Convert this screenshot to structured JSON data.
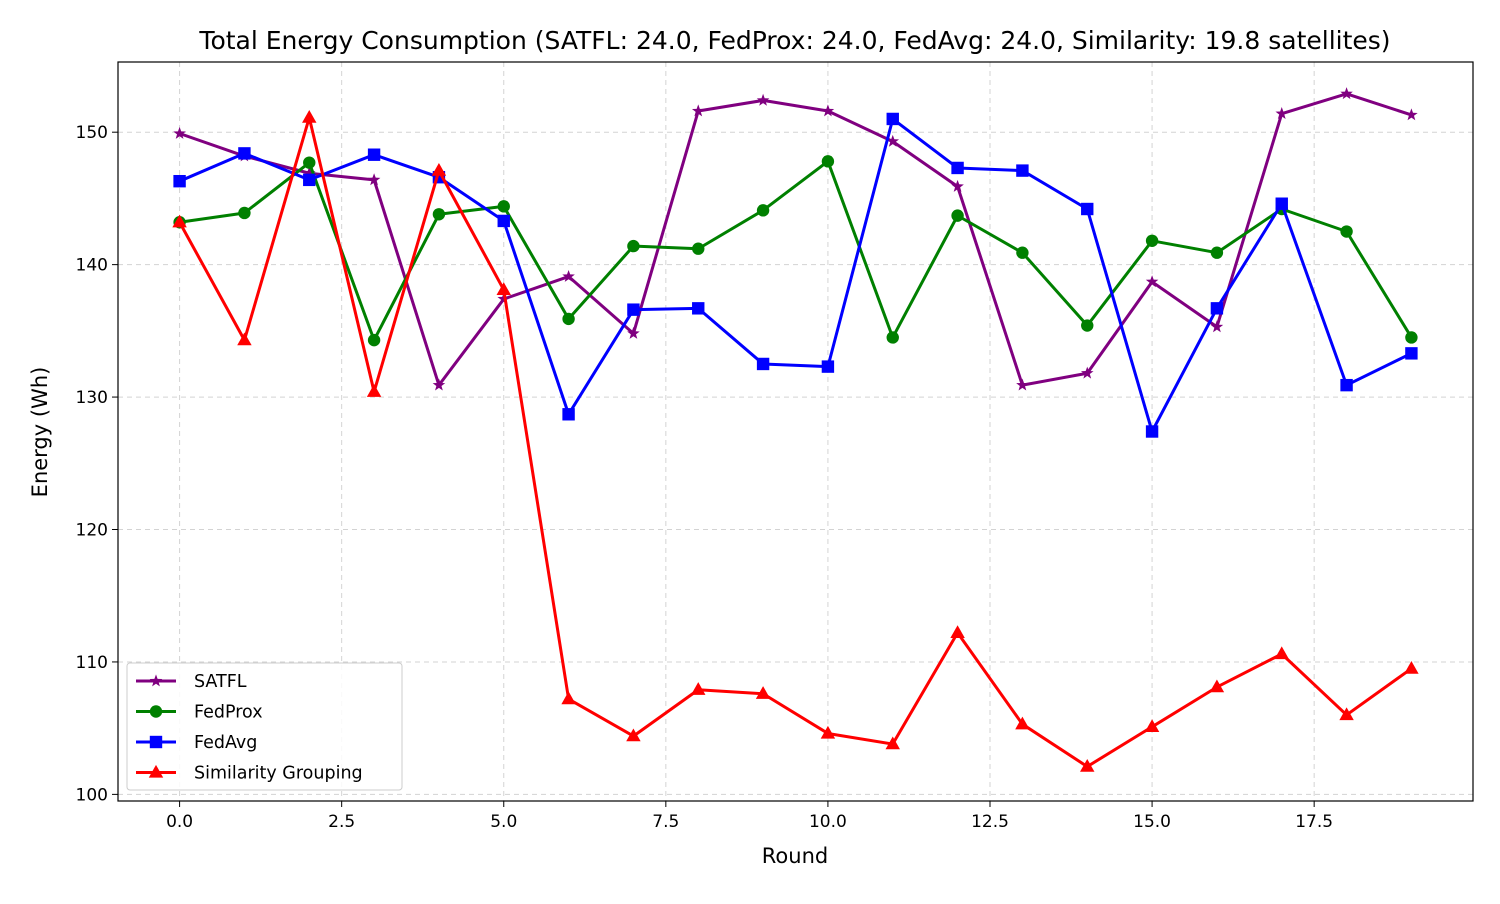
{
  "chart_data": {
    "type": "line",
    "title": "Total Energy Consumption (SATFL: 24.0, FedProx: 24.0, FedAvg: 24.0, Similarity: 19.8 satellites)",
    "xlabel": "Round",
    "ylabel": "Energy (Wh)",
    "xlim": [
      -0.95,
      19.95
    ],
    "ylim": [
      99.5,
      155.3
    ],
    "xticks": [
      "0.0",
      "2.5",
      "5.0",
      "7.5",
      "10.0",
      "12.5",
      "15.0",
      "17.5"
    ],
    "xtick_values": [
      0,
      2.5,
      5,
      7.5,
      10,
      12.5,
      15,
      17.5
    ],
    "yticks": [
      "100",
      "110",
      "120",
      "130",
      "140",
      "150"
    ],
    "ytick_values": [
      100,
      110,
      120,
      130,
      140,
      150
    ],
    "grid": true,
    "legend_position": "lower-left",
    "x": [
      0,
      1,
      2,
      3,
      4,
      5,
      6,
      7,
      8,
      9,
      10,
      11,
      12,
      13,
      14,
      15,
      16,
      17,
      18,
      19
    ],
    "series": [
      {
        "name": "SATFL",
        "color": "#800080",
        "marker": "star",
        "values": [
          149.9,
          148.2,
          146.9,
          146.4,
          130.9,
          137.4,
          139.1,
          134.8,
          151.6,
          152.4,
          151.6,
          149.3,
          145.9,
          130.9,
          131.8,
          138.7,
          135.3,
          151.4,
          152.9,
          151.3
        ]
      },
      {
        "name": "FedProx",
        "color": "#008000",
        "marker": "circle",
        "values": [
          143.2,
          143.9,
          147.7,
          134.3,
          143.8,
          144.4,
          135.9,
          141.4,
          141.2,
          144.1,
          147.8,
          134.5,
          143.7,
          140.9,
          135.4,
          141.8,
          140.9,
          144.2,
          142.5,
          134.5
        ]
      },
      {
        "name": "FedAvg",
        "color": "#0000ff",
        "marker": "square",
        "values": [
          146.3,
          148.4,
          146.4,
          148.3,
          146.6,
          143.3,
          128.7,
          136.6,
          136.7,
          132.5,
          132.3,
          151.0,
          147.3,
          147.1,
          144.2,
          127.4,
          136.7,
          144.6,
          130.9,
          133.3
        ]
      },
      {
        "name": "Similarity Grouping",
        "color": "#ff0000",
        "marker": "triangle",
        "values": [
          143.2,
          134.3,
          151.1,
          130.4,
          147.1,
          138.1,
          107.2,
          104.4,
          107.9,
          107.6,
          104.6,
          103.8,
          112.2,
          105.3,
          102.1,
          105.1,
          108.1,
          110.6,
          106.0,
          109.5
        ]
      }
    ]
  }
}
